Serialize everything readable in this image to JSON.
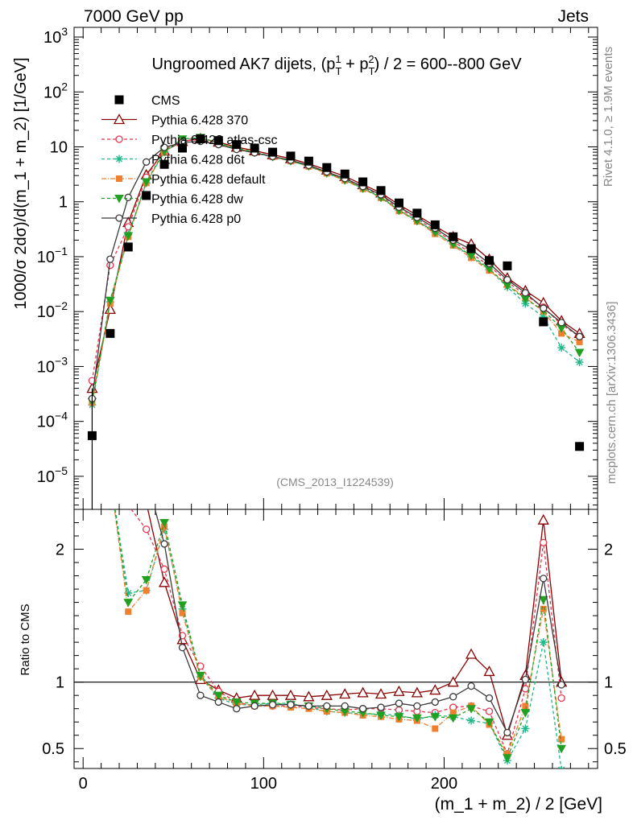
{
  "header": {
    "left": "7000 GeV pp",
    "right": "Jets"
  },
  "side_text": {
    "rivet": "Rivet 4.1.0, ≥ 1.9M events",
    "mcplots": "mcplots.cern.ch [arXiv:1306.3436]"
  },
  "chart_data": {
    "type": "line",
    "title": "Ungroomed AK7 dijets, (p_T^1 + p_T^2) / 2 = 600--800 GeV",
    "title_parts": {
      "a": "Ungroomed AK7 dijets, (p",
      "sub1": "T",
      "sup1": "1",
      "b": " + p",
      "sub2": "T",
      "sup2": "2",
      "c": ") / 2 = 600--800 GeV"
    },
    "analysis_id": "(CMS_2013_I1224539)",
    "xlabel": "(m_1 + m_2) / 2 [GeV]",
    "ylabel": "1000/σ   2dσ)/d(m_1 + m_2) [1/GeV]",
    "ratio_ylabel": "Ratio to CMS",
    "xlim": [
      -5,
      285
    ],
    "ylim_log": [
      2.5e-06,
      1500
    ],
    "ratio_ylim": [
      0.35,
      2.3
    ],
    "x_ticks": [
      0,
      100,
      200
    ],
    "y_tick_labels": [
      "10^3",
      "10^2",
      "10",
      "1",
      "10^-1",
      "10^-2",
      "10^-3",
      "10^-4",
      "10^-5"
    ],
    "ratio_ticks": [
      0.5,
      1,
      2
    ],
    "legend_position": "top-left",
    "x": [
      5,
      15,
      25,
      35,
      45,
      55,
      65,
      75,
      85,
      95,
      105,
      115,
      125,
      135,
      145,
      155,
      165,
      175,
      185,
      195,
      205,
      215,
      225,
      235,
      245,
      255,
      265,
      275
    ],
    "data": {
      "name": "CMS",
      "color": "#000000",
      "values": [
        5.5e-05,
        0.004,
        0.15,
        1.3,
        4.8,
        9.5,
        14,
        13,
        11,
        9.5,
        8,
        6.8,
        5.5,
        4.2,
        3.2,
        2.3,
        1.6,
        0.95,
        0.62,
        0.38,
        0.23,
        0.14,
        0.085,
        0.068,
        null,
        0.0065,
        null,
        3.5e-05
      ]
    },
    "series": [
      {
        "name": "Pythia 6.428 370",
        "color": "#8b0000",
        "marker": "triangle-open",
        "dash": "",
        "values": [
          0.0004,
          0.011,
          0.42,
          3.1,
          8.4,
          12.5,
          14.2,
          12.2,
          9.9,
          8.5,
          7.2,
          6.1,
          4.9,
          3.8,
          2.9,
          2.05,
          1.45,
          0.88,
          0.57,
          0.36,
          0.23,
          0.17,
          0.09,
          0.041,
          0.024,
          0.0145,
          0.0068,
          0.004
        ],
        "ratio": [
          7.3,
          2.75,
          2.7,
          2.35,
          1.75,
          1.32,
          1.02,
          0.94,
          0.88,
          0.9,
          0.9,
          0.9,
          0.89,
          0.9,
          0.91,
          0.92,
          0.91,
          0.93,
          0.92,
          0.94,
          1.0,
          1.21,
          1.08,
          0.6,
          1.05,
          2.22,
          1.0,
          null
        ]
      },
      {
        "name": "Pythia 6.428 atlas-csc",
        "color": "#e8334f",
        "marker": "circle-open",
        "dash": "4,3",
        "values": [
          0.00055,
          0.07,
          0.35,
          2.8,
          8.9,
          12.8,
          13.6,
          11.4,
          9.3,
          7.8,
          6.6,
          5.6,
          4.5,
          3.4,
          2.55,
          1.85,
          1.28,
          0.75,
          0.49,
          0.3,
          0.19,
          0.115,
          0.068,
          0.035,
          0.02,
          0.012,
          0.0058,
          0.0035
        ],
        "ratio": [
          10,
          17,
          2.33,
          2.15,
          1.85,
          1.35,
          1.12,
          0.93,
          0.85,
          0.82,
          0.82,
          0.82,
          0.81,
          0.8,
          0.79,
          0.8,
          0.8,
          0.79,
          0.78,
          0.77,
          0.81,
          0.82,
          0.78,
          0.46,
          0.95,
          2.05,
          0.88,
          null
        ]
      },
      {
        "name": "Pythia 6.428 d6t",
        "color": "#1fb88a",
        "marker": "star",
        "dash": "4,3",
        "values": [
          0.0002,
          0.015,
          0.25,
          2.2,
          8.0,
          13.5,
          14.6,
          11.5,
          9.2,
          7.8,
          6.5,
          5.5,
          4.4,
          3.3,
          2.45,
          1.75,
          1.22,
          0.7,
          0.45,
          0.28,
          0.17,
          0.1,
          0.058,
          0.028,
          0.014,
          0.008,
          0.0022,
          0.0012
        ],
        "ratio": [
          3.6,
          3.8,
          1.67,
          1.69,
          2.15,
          1.55,
          1.04,
          0.88,
          0.83,
          0.83,
          0.84,
          0.84,
          0.81,
          0.78,
          0.77,
          0.76,
          0.76,
          0.75,
          0.72,
          0.75,
          0.74,
          0.71,
          0.69,
          0.41,
          0.65,
          1.3,
          0.34,
          null
        ]
      },
      {
        "name": "Pythia 6.428 default",
        "color": "#f08030",
        "marker": "square",
        "dash": "6,2,1,2",
        "values": [
          0.00022,
          0.014,
          0.23,
          2.2,
          8.2,
          13.8,
          14.8,
          11.7,
          9.3,
          7.9,
          6.6,
          5.5,
          4.4,
          3.3,
          2.45,
          1.72,
          1.18,
          0.68,
          0.44,
          0.26,
          0.16,
          0.095,
          0.056,
          0.031,
          0.018,
          0.01,
          0.004,
          0.0028
        ],
        "ratio": [
          4,
          3.5,
          1.53,
          1.69,
          2.17,
          1.52,
          1.04,
          0.89,
          0.84,
          0.82,
          0.82,
          0.81,
          0.8,
          0.78,
          0.77,
          0.75,
          0.74,
          0.72,
          0.71,
          0.65,
          0.77,
          0.82,
          0.68,
          0.46,
          0.82,
          1.55,
          0.57,
          null
        ]
      },
      {
        "name": "Pythia 6.428 dw",
        "color": "#22a022",
        "marker": "triangle-down",
        "dash": "4,3",
        "values": [
          0.00023,
          0.016,
          0.24,
          2.3,
          8.3,
          13.9,
          14.8,
          11.8,
          9.4,
          8.0,
          6.7,
          5.6,
          4.5,
          3.35,
          2.5,
          1.76,
          1.2,
          0.7,
          0.45,
          0.28,
          0.17,
          0.105,
          0.06,
          0.03,
          0.017,
          0.0105,
          0.005,
          0.0018
        ],
        "ratio": [
          4.2,
          4.0,
          1.6,
          1.77,
          2.2,
          1.58,
          1.05,
          0.9,
          0.85,
          0.84,
          0.84,
          0.83,
          0.82,
          0.8,
          0.78,
          0.77,
          0.75,
          0.74,
          0.73,
          0.74,
          0.73,
          0.8,
          0.7,
          0.43,
          0.77,
          1.62,
          0.5,
          null
        ]
      },
      {
        "name": "Pythia 6.428 p0",
        "color": "#3a3a3a",
        "marker": "circle-open",
        "dash": "",
        "values": [
          0.00026,
          0.09,
          1.2,
          5.3,
          9.8,
          12.0,
          12.6,
          11.0,
          9.0,
          7.8,
          6.7,
          5.7,
          4.6,
          3.5,
          2.65,
          1.9,
          1.34,
          0.8,
          0.52,
          0.33,
          0.2,
          0.135,
          0.075,
          0.038,
          0.022,
          0.0115,
          0.0063,
          0.0035
        ],
        "ratio": [
          4.7,
          22,
          8,
          4.1,
          2.04,
          1.26,
          0.9,
          0.85,
          0.8,
          0.82,
          0.83,
          0.83,
          0.82,
          0.82,
          0.82,
          0.8,
          0.81,
          0.84,
          0.82,
          0.85,
          0.89,
          0.97,
          0.88,
          0.62,
          1.02,
          1.78,
          0.98,
          null
        ]
      }
    ]
  }
}
